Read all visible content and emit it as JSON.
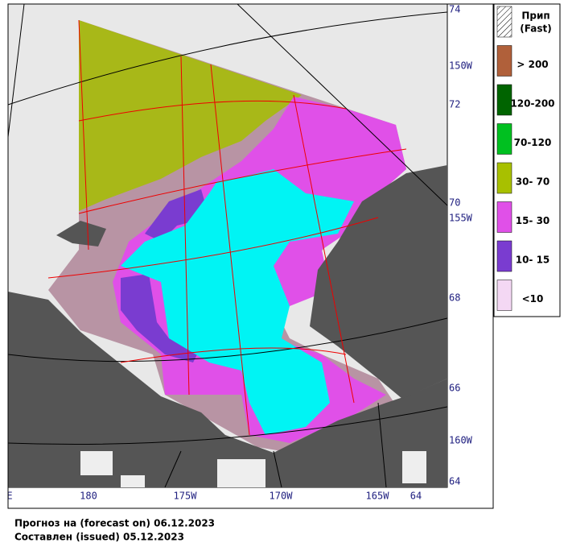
{
  "map": {
    "lat_labels": [
      "74",
      "72",
      "70",
      "68",
      "66",
      "64"
    ],
    "lon_right_labels": [
      "150W",
      "155W",
      "160W"
    ],
    "lon_bottom_labels": [
      "E",
      "180",
      "175W",
      "170W",
      "165W",
      "64"
    ]
  },
  "legend": {
    "items": [
      {
        "label": "Прип",
        "sublabel": "(Fast)",
        "color": "hatch"
      },
      {
        "label": "> 200",
        "color": "#b0603a"
      },
      {
        "label": "120-200",
        "color": "#006400"
      },
      {
        "label": "70-120",
        "color": "#00c020"
      },
      {
        "label": "30- 70",
        "color": "#a8c000"
      },
      {
        "label": "15- 30",
        "color": "#e050e8"
      },
      {
        "label": "10- 15",
        "color": "#7a3cd0"
      },
      {
        "label": "<10",
        "color": "#f4d8f4"
      }
    ]
  },
  "footer": {
    "forecast": "Прогноз на (forecast on)  06.12.2023",
    "issued": "Составлен (issued)  05.12.2023"
  }
}
